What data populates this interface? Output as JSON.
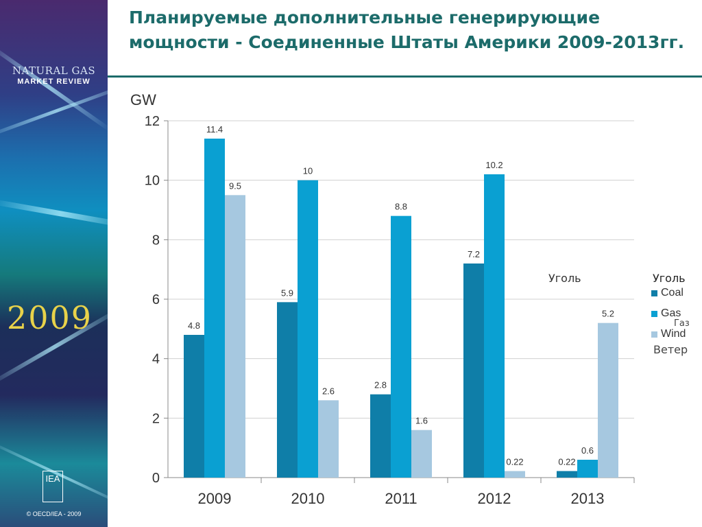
{
  "sidebar": {
    "brand_line1": "NATURAL GAS",
    "brand_line2": "MARKET REVIEW",
    "year": "2009",
    "logo_text": "IEA",
    "copyright": "© OECD/IEA - 2009"
  },
  "slide": {
    "title": "Планируемые дополнительные генерирующие мощности - Соединенные Штаты Америки 2009-2013гг."
  },
  "colors": {
    "coal": "#0f7ea8",
    "gas": "#0aa0d2",
    "wind": "#a6c8e0",
    "title": "#1c6b6a"
  },
  "chart_data": {
    "type": "bar",
    "categories": [
      "2009",
      "2010",
      "2011",
      "2012",
      "2013"
    ],
    "series": [
      {
        "name": "Coal",
        "values": [
          4.8,
          5.9,
          2.8,
          7.2,
          0.22
        ],
        "labels": [
          "4.8",
          "5.9",
          "2.8",
          "7.2",
          "0.22"
        ]
      },
      {
        "name": "Gas",
        "values": [
          11.4,
          10,
          8.8,
          10.2,
          0.6
        ],
        "labels": [
          "11.4",
          "10",
          "8.8",
          "10.2",
          "0.6"
        ]
      },
      {
        "name": "Wind",
        "values": [
          9.5,
          2.6,
          1.6,
          0.22,
          5.2
        ],
        "labels": [
          "9.5",
          "2.6",
          "1.6",
          "0.22",
          "5.2"
        ]
      }
    ],
    "ylabel": "GW",
    "ylim": [
      0,
      12
    ],
    "yticks": [
      0,
      2,
      4,
      6,
      8,
      10,
      12
    ],
    "grid": true,
    "legend": "right",
    "annotation": "Уголь"
  },
  "legend_labels": {
    "title": "Уголь",
    "gas_sub": "Газ",
    "wind_sub": "Ветер"
  }
}
